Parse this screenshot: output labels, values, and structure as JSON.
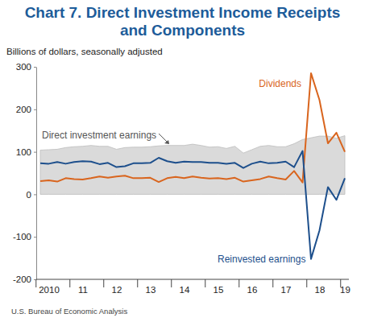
{
  "chart_data": {
    "type": "line",
    "title": "Chart 7. Direct Investment Income Receipts and Components",
    "subtitle": "Billions of dollars, seasonally adjusted",
    "source": "U.S. Bureau of Economic Analysis",
    "categories": [
      null,
      "2010",
      null,
      null,
      null,
      "11",
      null,
      null,
      null,
      "12",
      null,
      null,
      null,
      "13",
      null,
      null,
      null,
      "14",
      null,
      null,
      null,
      "15",
      null,
      null,
      null,
      "16",
      null,
      null,
      null,
      "17",
      null,
      null,
      null,
      "18",
      null,
      null,
      "19"
    ],
    "series": [
      {
        "name": "Direct investment earnings",
        "type": "area",
        "color": "#dadada",
        "values": [
          104,
          105,
          106,
          110,
          112,
          113,
          115,
          113,
          113,
          106,
          110,
          111,
          111,
          112,
          114,
          115,
          115,
          115,
          118,
          115,
          111,
          112,
          108,
          113,
          97,
          105,
          113,
          115,
          112,
          112,
          119,
          129,
          133,
          137,
          137,
          132,
          138
        ]
      },
      {
        "name": "Dividends",
        "type": "line",
        "color": "#d9651e",
        "values": [
          31,
          33,
          30,
          38,
          36,
          35,
          38,
          42,
          39,
          42,
          44,
          38,
          38,
          39,
          29,
          38,
          41,
          38,
          42,
          39,
          37,
          38,
          36,
          39,
          30,
          33,
          36,
          42,
          38,
          35,
          55,
          28,
          285,
          222,
          120,
          145,
          100
        ]
      },
      {
        "name": "Reinvested earnings",
        "type": "line",
        "color": "#1d4f8c",
        "values": [
          73,
          72,
          76,
          72,
          76,
          78,
          77,
          71,
          74,
          64,
          66,
          73,
          73,
          74,
          86,
          78,
          74,
          77,
          76,
          76,
          74,
          74,
          72,
          74,
          62,
          72,
          77,
          73,
          74,
          77,
          64,
          102,
          -152,
          -85,
          17,
          -13,
          38
        ]
      }
    ],
    "ylim": [
      -200,
      300
    ],
    "yticks": [
      -200,
      -100,
      0,
      100,
      200,
      300
    ],
    "grid": false
  }
}
